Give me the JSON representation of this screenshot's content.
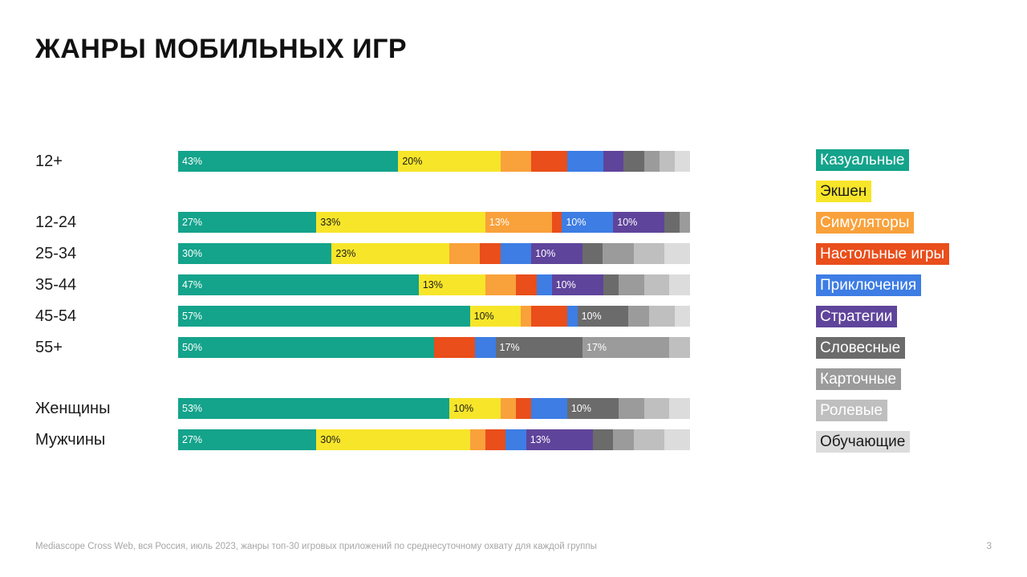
{
  "title": "ЖАНРЫ МОБИЛЬНЫХ ИГР",
  "footer": {
    "source": "Mediascope Cross Web, вся Россия, июль 2023, жанры топ-30 игровых приложений по среднесуточному охвату для каждой группы",
    "page_number": "3"
  },
  "legend": {
    "items": [
      {
        "label": "Казуальные",
        "color": "#14A38B",
        "text_color": "#ffffff"
      },
      {
        "label": "Экшен",
        "color": "#F7E52A",
        "text_color": "#1a1a1a"
      },
      {
        "label": "Симуляторы",
        "color": "#F9A13B",
        "text_color": "#ffffff"
      },
      {
        "label": "Настольные игры",
        "color": "#E94E1B",
        "text_color": "#ffffff"
      },
      {
        "label": "Приключения",
        "color": "#3D7DE4",
        "text_color": "#ffffff"
      },
      {
        "label": "Стратегии",
        "color": "#5F449B",
        "text_color": "#ffffff"
      },
      {
        "label": "Словесные",
        "color": "#6B6B6B",
        "text_color": "#ffffff"
      },
      {
        "label": "Карточные",
        "color": "#9B9B9B",
        "text_color": "#ffffff"
      },
      {
        "label": "Ролевые",
        "color": "#BFBFBF",
        "text_color": "#ffffff"
      },
      {
        "label": "Обучающие",
        "color": "#DCDCDC",
        "text_color": "#1a1a1a"
      }
    ]
  },
  "chart_data": {
    "type": "bar",
    "stacked": true,
    "orientation": "horizontal",
    "unit": "%",
    "xlim": [
      0,
      100
    ],
    "grid": false,
    "legend_position": "right",
    "title": "ЖАНРЫ МОБИЛЬНЫХ ИГР",
    "genres": [
      "Казуальные",
      "Экшен",
      "Симуляторы",
      "Настольные игры",
      "Приключения",
      "Стратегии",
      "Словесные",
      "Карточные",
      "Ролевые",
      "Обучающие"
    ],
    "categories": [
      "12+",
      "12-24",
      "25-34",
      "35-44",
      "45-54",
      "55+",
      "Женщины",
      "Мужчины"
    ],
    "rows": [
      {
        "category": "12+",
        "gap_before": false,
        "segments": [
          {
            "genre": "Казуальные",
            "value": 43,
            "label": "43%"
          },
          {
            "genre": "Экшен",
            "value": 20,
            "label": "20%"
          },
          {
            "genre": "Симуляторы",
            "value": 6,
            "label": ""
          },
          {
            "genre": "Настольные игры",
            "value": 7,
            "label": ""
          },
          {
            "genre": "Приключения",
            "value": 7,
            "label": ""
          },
          {
            "genre": "Стратегии",
            "value": 4,
            "label": ""
          },
          {
            "genre": "Словесные",
            "value": 4,
            "label": ""
          },
          {
            "genre": "Карточные",
            "value": 3,
            "label": ""
          },
          {
            "genre": "Ролевые",
            "value": 3,
            "label": ""
          },
          {
            "genre": "Обучающие",
            "value": 3,
            "label": ""
          }
        ]
      },
      {
        "category": "12-24",
        "gap_before": true,
        "segments": [
          {
            "genre": "Казуальные",
            "value": 27,
            "label": "27%"
          },
          {
            "genre": "Экшен",
            "value": 33,
            "label": "33%"
          },
          {
            "genre": "Симуляторы",
            "value": 13,
            "label": "13%"
          },
          {
            "genre": "Настольные игры",
            "value": 2,
            "label": ""
          },
          {
            "genre": "Приключения",
            "value": 10,
            "label": "10%"
          },
          {
            "genre": "Стратегии",
            "value": 10,
            "label": "10%"
          },
          {
            "genre": "Словесные",
            "value": 3,
            "label": ""
          },
          {
            "genre": "Карточные",
            "value": 2,
            "label": ""
          }
        ]
      },
      {
        "category": "25-34",
        "gap_before": false,
        "segments": [
          {
            "genre": "Казуальные",
            "value": 30,
            "label": "30%"
          },
          {
            "genre": "Экшен",
            "value": 23,
            "label": "23%"
          },
          {
            "genre": "Симуляторы",
            "value": 6,
            "label": ""
          },
          {
            "genre": "Настольные игры",
            "value": 4,
            "label": ""
          },
          {
            "genre": "Приключения",
            "value": 6,
            "label": ""
          },
          {
            "genre": "Стратегии",
            "value": 10,
            "label": "10%"
          },
          {
            "genre": "Словесные",
            "value": 4,
            "label": ""
          },
          {
            "genre": "Карточные",
            "value": 6,
            "label": ""
          },
          {
            "genre": "Ролевые",
            "value": 6,
            "label": ""
          },
          {
            "genre": "Обучающие",
            "value": 5,
            "label": ""
          }
        ]
      },
      {
        "category": "35-44",
        "gap_before": false,
        "segments": [
          {
            "genre": "Казуальные",
            "value": 47,
            "label": "47%"
          },
          {
            "genre": "Экшен",
            "value": 13,
            "label": "13%"
          },
          {
            "genre": "Симуляторы",
            "value": 6,
            "label": ""
          },
          {
            "genre": "Настольные игры",
            "value": 4,
            "label": ""
          },
          {
            "genre": "Приключения",
            "value": 3,
            "label": ""
          },
          {
            "genre": "Стратегии",
            "value": 10,
            "label": "10%"
          },
          {
            "genre": "Словесные",
            "value": 3,
            "label": ""
          },
          {
            "genre": "Карточные",
            "value": 5,
            "label": ""
          },
          {
            "genre": "Ролевые",
            "value": 5,
            "label": ""
          },
          {
            "genre": "Обучающие",
            "value": 4,
            "label": ""
          }
        ]
      },
      {
        "category": "45-54",
        "gap_before": false,
        "segments": [
          {
            "genre": "Казуальные",
            "value": 57,
            "label": "57%"
          },
          {
            "genre": "Экшен",
            "value": 10,
            "label": "10%"
          },
          {
            "genre": "Симуляторы",
            "value": 2,
            "label": ""
          },
          {
            "genre": "Настольные игры",
            "value": 7,
            "label": ""
          },
          {
            "genre": "Приключения",
            "value": 2,
            "label": ""
          },
          {
            "genre": "Словесные",
            "value": 10,
            "label": "10%"
          },
          {
            "genre": "Карточные",
            "value": 4,
            "label": ""
          },
          {
            "genre": "Ролевые",
            "value": 5,
            "label": ""
          },
          {
            "genre": "Обучающие",
            "value": 3,
            "label": ""
          }
        ]
      },
      {
        "category": "55+",
        "gap_before": false,
        "segments": [
          {
            "genre": "Казуальные",
            "value": 50,
            "label": "50%"
          },
          {
            "genre": "Настольные игры",
            "value": 8,
            "label": ""
          },
          {
            "genre": "Приключения",
            "value": 4,
            "label": ""
          },
          {
            "genre": "Словесные",
            "value": 17,
            "label": "17%"
          },
          {
            "genre": "Карточные",
            "value": 17,
            "label": "17%"
          },
          {
            "genre": "Ролевые",
            "value": 4,
            "label": ""
          }
        ]
      },
      {
        "category": "Женщины",
        "gap_before": true,
        "segments": [
          {
            "genre": "Казуальные",
            "value": 53,
            "label": "53%"
          },
          {
            "genre": "Экшен",
            "value": 10,
            "label": "10%"
          },
          {
            "genre": "Симуляторы",
            "value": 3,
            "label": ""
          },
          {
            "genre": "Настольные игры",
            "value": 3,
            "label": ""
          },
          {
            "genre": "Приключения",
            "value": 7,
            "label": ""
          },
          {
            "genre": "Словесные",
            "value": 10,
            "label": "10%"
          },
          {
            "genre": "Карточные",
            "value": 5,
            "label": ""
          },
          {
            "genre": "Ролевые",
            "value": 5,
            "label": ""
          },
          {
            "genre": "Обучающие",
            "value": 4,
            "label": ""
          }
        ]
      },
      {
        "category": "Мужчины",
        "gap_before": false,
        "segments": [
          {
            "genre": "Казуальные",
            "value": 27,
            "label": "27%"
          },
          {
            "genre": "Экшен",
            "value": 30,
            "label": "30%"
          },
          {
            "genre": "Симуляторы",
            "value": 3,
            "label": ""
          },
          {
            "genre": "Настольные игры",
            "value": 4,
            "label": ""
          },
          {
            "genre": "Приключения",
            "value": 4,
            "label": ""
          },
          {
            "genre": "Стратегии",
            "value": 13,
            "label": "13%"
          },
          {
            "genre": "Словесные",
            "value": 4,
            "label": ""
          },
          {
            "genre": "Карточные",
            "value": 4,
            "label": ""
          },
          {
            "genre": "Ролевые",
            "value": 6,
            "label": ""
          },
          {
            "genre": "Обучающие",
            "value": 5,
            "label": ""
          }
        ]
      }
    ]
  }
}
